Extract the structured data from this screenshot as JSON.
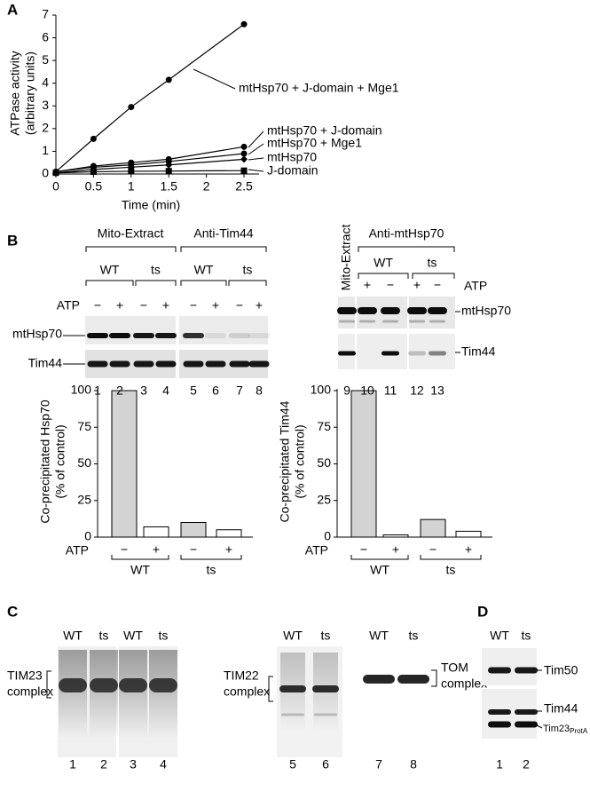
{
  "panels": {
    "a": "A",
    "b": "B",
    "c": "C",
    "d": "D"
  },
  "chart_data": [
    {
      "type": "line",
      "ylabel": [
        "ATPase activity",
        "(arbitrary units)"
      ],
      "xlabel": "Time (min)",
      "x": [
        0,
        0.5,
        1,
        1.5,
        2.5
      ],
      "series": [
        {
          "name": "mtHsp70 + J-domain + Mge1",
          "color": "#000000",
          "marker": "circle",
          "values": [
            0.1,
            1.55,
            2.95,
            4.15,
            6.6
          ]
        },
        {
          "name": "mtHsp70 + J-domain",
          "color": "#000000",
          "marker": "circle",
          "values": [
            0.1,
            0.35,
            0.5,
            0.65,
            1.2
          ]
        },
        {
          "name": "mtHsp70 + Mge1",
          "color": "#000000",
          "marker": "circle",
          "values": [
            0.1,
            0.3,
            0.4,
            0.55,
            0.9
          ]
        },
        {
          "name": "mtHsp70",
          "color": "#000000",
          "marker": "diamond",
          "values": [
            0.05,
            0.2,
            0.3,
            0.4,
            0.65
          ]
        },
        {
          "name": "J-domain",
          "color": "#000000",
          "marker": "square",
          "values": [
            0.05,
            0.1,
            0.12,
            0.13,
            0.15
          ]
        }
      ],
      "xlim": [
        0,
        2.7
      ],
      "ylim": [
        0,
        7
      ],
      "xticks": [
        0,
        0.5,
        1,
        1.5,
        2,
        2.5
      ],
      "yticks": [
        0,
        1,
        2,
        3,
        4,
        5,
        6,
        7
      ]
    },
    {
      "type": "bar",
      "ylabel": [
        "Co-precipitated Hsp70",
        "(% of control)"
      ],
      "category_label": "ATP",
      "categories": [
        "−",
        "+",
        "−",
        "+"
      ],
      "groups": [
        "WT",
        "ts"
      ],
      "values": [
        100,
        7,
        10,
        5
      ],
      "colors": [
        "#d3d3d3",
        "#ffffff",
        "#d3d3d3",
        "#ffffff"
      ],
      "ylim": [
        0,
        100
      ],
      "yticks": [
        0,
        25,
        50,
        75,
        100
      ]
    },
    {
      "type": "bar",
      "ylabel": [
        "Co-precipitated Tim44",
        "(% of control)"
      ],
      "category_label": "ATP",
      "categories": [
        "−",
        "+",
        "−",
        "+"
      ],
      "groups": [
        "WT",
        "ts"
      ],
      "values": [
        100,
        1.5,
        12,
        4
      ],
      "colors": [
        "#d3d3d3",
        "#ffffff",
        "#d3d3d3",
        "#ffffff"
      ],
      "ylim": [
        0,
        100
      ],
      "yticks": [
        0,
        25,
        50,
        75,
        100
      ]
    }
  ],
  "blot_b_left": {
    "headers": [
      "Mito-Extract",
      "Anti-Tim44"
    ],
    "strains": [
      "WT",
      "ts",
      "WT",
      "ts"
    ],
    "atp_label": "ATP",
    "atp": [
      "−",
      "+",
      "−",
      "+",
      "−",
      "+",
      "−",
      "+"
    ],
    "rows": [
      "mtHsp70",
      "Tim44"
    ],
    "lanes": [
      1,
      2,
      3,
      4,
      5,
      6,
      7,
      8
    ]
  },
  "blot_b_right": {
    "first_lane": "Mito-Extract",
    "header": "Anti-mtHsp70",
    "strains": [
      "WT",
      "ts"
    ],
    "atp_label": "ATP",
    "atp": [
      "+",
      "−",
      "+",
      "−"
    ],
    "rows": [
      "mtHsp70",
      "Tim44"
    ],
    "lanes": [
      9,
      10,
      11,
      12,
      13
    ]
  },
  "blot_c_left": {
    "strains": [
      "WT",
      "ts",
      "WT",
      "ts"
    ],
    "complex": [
      "TIM23",
      "complex"
    ],
    "lanes": [
      1,
      2,
      3,
      4
    ]
  },
  "blot_c_right": {
    "strains": [
      "WT",
      "ts",
      "WT",
      "ts"
    ],
    "complexes": [
      [
        "TIM22",
        "complex"
      ],
      [
        "TOM",
        "complex"
      ]
    ],
    "lanes": [
      5,
      6,
      7,
      8
    ]
  },
  "blot_d": {
    "strains": [
      "WT",
      "ts"
    ],
    "rows": [
      "Tim50",
      "Tim44"
    ],
    "tim23": {
      "text": "Tim23",
      "sub": "ProtA"
    },
    "lanes": [
      1,
      2
    ]
  }
}
